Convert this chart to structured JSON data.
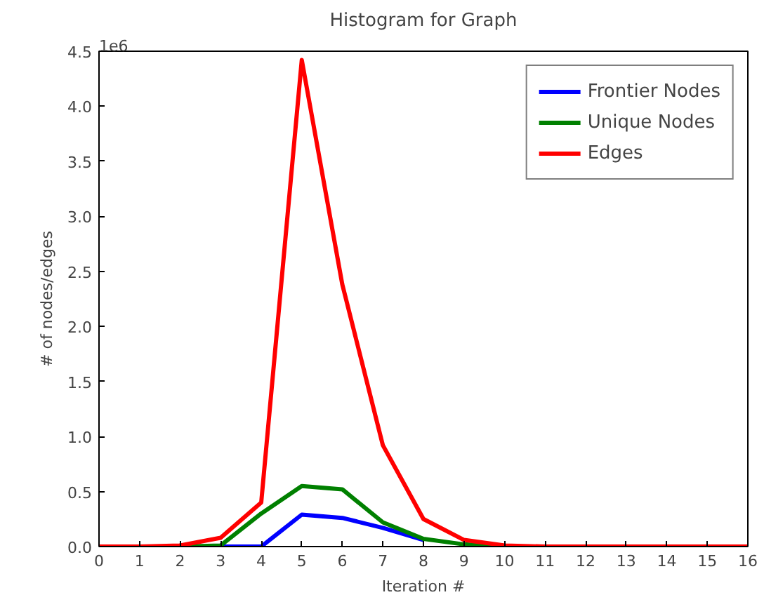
{
  "chart_data": {
    "type": "line",
    "title": "Histogram for Graph",
    "xlabel": "Iteration #",
    "ylabel": "# of nodes/edges",
    "x": [
      0,
      1,
      2,
      3,
      4,
      5,
      6,
      7,
      8,
      9,
      10,
      11,
      12,
      13,
      14,
      15,
      16
    ],
    "series": [
      {
        "name": "Frontier Nodes",
        "color": "#0000ff",
        "values": [
          null,
          null,
          null,
          0,
          0,
          0.29,
          0.26,
          0.17,
          0.06,
          null,
          null,
          null,
          null,
          null,
          null,
          null,
          null
        ]
      },
      {
        "name": "Unique Nodes",
        "color": "#008000",
        "values": [
          0,
          0,
          0,
          0.01,
          0.3,
          0.55,
          0.52,
          0.22,
          0.07,
          0.02,
          0,
          0,
          null,
          null,
          null,
          null,
          null
        ]
      },
      {
        "name": "Edges",
        "color": "#ff0000",
        "values": [
          0,
          0,
          0.01,
          0.08,
          0.4,
          4.42,
          2.38,
          0.92,
          0.25,
          0.06,
          0.01,
          0,
          0,
          0,
          0,
          0,
          0
        ]
      }
    ],
    "xlim": [
      0,
      16
    ],
    "xticks": [
      0,
      1,
      2,
      3,
      4,
      5,
      6,
      7,
      8,
      9,
      10,
      11,
      12,
      13,
      14,
      15,
      16
    ],
    "ylim": [
      0,
      4.5
    ],
    "yticks": [
      {
        "value": 0,
        "label": "0.0"
      },
      0.5,
      {
        "value": 1,
        "label": "1.0"
      },
      1.5,
      {
        "value": 2,
        "label": "2.0"
      },
      2.5,
      {
        "value": 3,
        "label": "3.0"
      },
      3.5,
      {
        "value": 4,
        "label": "4.0"
      },
      4.5
    ],
    "annotations": [
      "1e6"
    ],
    "legend": "top right",
    "grid": false,
    "marker": "none",
    "line_style": "solid"
  }
}
